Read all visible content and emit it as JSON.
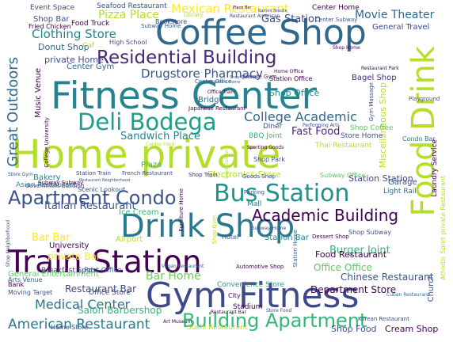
{
  "words": [
    {
      "text": "Home private",
      "color": "#b5de2b"
    },
    {
      "text": "Fitness Center",
      "color": "#26828e"
    },
    {
      "text": "Coffee Shop",
      "color": "#31688e"
    },
    {
      "text": "Gym Fitness",
      "color": "#3e4989"
    },
    {
      "text": "Drink Shop",
      "color": "#2a788e"
    },
    {
      "text": "Train Station",
      "color": "#440154"
    },
    {
      "text": "Food Drink",
      "color": "#b5de2b"
    },
    {
      "text": "Residential Building",
      "color": "#482878"
    },
    {
      "text": "Deli Bodega",
      "color": "#1f9e89"
    },
    {
      "text": "Apartment Condo",
      "color": "#3b528b"
    },
    {
      "text": "Bus Station",
      "color": "#21918c"
    },
    {
      "text": "Building Apartment",
      "color": "#35b779"
    },
    {
      "text": "Academic Building",
      "color": "#440154"
    },
    {
      "text": "American Restaurant",
      "color": "#2a788e"
    },
    {
      "text": "Great Outdoors",
      "color": "#31688e"
    },
    {
      "text": "Clothing Store",
      "color": "#25858e"
    },
    {
      "text": "Drugstore Pharmacy",
      "color": "#3b528b"
    },
    {
      "text": "College Academic",
      "color": "#31688e"
    },
    {
      "text": "Medical Center",
      "color": "#2c728e"
    },
    {
      "text": "Mexican Restaurant",
      "color": "#fde725"
    },
    {
      "text": "Pizza Place",
      "color": "#b5de2b"
    },
    {
      "text": "Movie Theater",
      "color": "#31688e"
    },
    {
      "text": "Gas Station",
      "color": "#3e4989"
    },
    {
      "text": "Office Office",
      "color": "#5ec962"
    },
    {
      "text": "Department Store",
      "color": "#440154"
    },
    {
      "text": "Bar Home",
      "color": "#6ece58"
    },
    {
      "text": "Italian Restaurant",
      "color": "#3b528b"
    },
    {
      "text": "Burger Joint",
      "color": "#35b779"
    },
    {
      "text": "Fast Food",
      "color": "#482878"
    },
    {
      "text": "Sandwich Place",
      "color": "#26828e"
    },
    {
      "text": "Bar Bar",
      "color": "#fde725"
    },
    {
      "text": "private Bar",
      "color": "#fde725"
    },
    {
      "text": "private Home",
      "color": "#3e4989"
    },
    {
      "text": "Restaurant Bar",
      "color": "#3e4989"
    },
    {
      "text": "Salon Barbershop",
      "color": "#35b779"
    },
    {
      "text": "Chinese Restaurant",
      "color": "#3b528b"
    },
    {
      "text": "Food Restaurant",
      "color": "#440154"
    },
    {
      "text": "Shop Office",
      "color": "#21918c"
    },
    {
      "text": "Station Station",
      "color": "#3e4989"
    },
    {
      "text": "Electronics Store",
      "color": "#b5de2b"
    },
    {
      "text": "Miscellaneous Shop",
      "color": "#b5de2b"
    },
    {
      "text": "Donut Shop",
      "color": "#31688e"
    },
    {
      "text": "Music Venue",
      "color": "#440154"
    },
    {
      "text": "Station Bar",
      "color": "#26828e"
    },
    {
      "text": "Shop Food",
      "color": "#3b528b"
    },
    {
      "text": "Cream Shop",
      "color": "#440154"
    },
    {
      "text": "Sushi Restaurant",
      "color": "#b5de2b"
    },
    {
      "text": "General Entertainment",
      "color": "#5ec962"
    },
    {
      "text": "Office Store",
      "color": "#3e4989"
    },
    {
      "text": "Bagel Shop",
      "color": "#482878"
    },
    {
      "text": "Convenience Store",
      "color": "#1f9e89"
    },
    {
      "text": "Center Home",
      "color": "#440154"
    },
    {
      "text": "Asian Restaurant",
      "color": "#1f9e89"
    },
    {
      "text": "Bakery",
      "color": "#26828e"
    },
    {
      "text": "Plaza",
      "color": "#35b779"
    },
    {
      "text": "Airport",
      "color": "#b5de2b"
    },
    {
      "text": "Stadium",
      "color": "#440154"
    },
    {
      "text": "Diner",
      "color": "#3e4989"
    },
    {
      "text": "Bridge",
      "color": "#31688e"
    },
    {
      "text": "Garage",
      "color": "#3b528b"
    },
    {
      "text": "Ice Cream",
      "color": "#35b779"
    },
    {
      "text": "University",
      "color": "#440154"
    },
    {
      "text": "Mall",
      "color": "#2a788e"
    },
    {
      "text": "Church",
      "color": "#3b528b"
    },
    {
      "text": "Center Gym",
      "color": "#31688e"
    },
    {
      "text": "Shop Bar",
      "color": "#3b528b"
    },
    {
      "text": "Food Truck",
      "color": "#440154"
    },
    {
      "text": "General Travel",
      "color": "#3e4989"
    },
    {
      "text": "Post Office",
      "color": "#31688e"
    },
    {
      "text": "Breakfast Spot",
      "color": "#3e4989"
    },
    {
      "text": "Seafood Restaurant",
      "color": "#3b528b"
    },
    {
      "text": "Event Space",
      "color": "#3e4989"
    },
    {
      "text": "Fried Chicken",
      "color": "#440154"
    },
    {
      "text": "Bookstore",
      "color": "#3e4989"
    },
    {
      "text": "Thai Restaurant",
      "color": "#b5de2b"
    },
    {
      "text": "Light Rail",
      "color": "#31688e"
    },
    {
      "text": "Condo Bar",
      "color": "#26828e"
    },
    {
      "text": "Laundry Service",
      "color": "#440154"
    },
    {
      "text": "Store Home",
      "color": "#3b528b"
    },
    {
      "text": "Shop Coffee",
      "color": "#5ec962"
    },
    {
      "text": "BBQ Joint",
      "color": "#35b779"
    },
    {
      "text": "Korean Restaurant",
      "color": "#3e4989"
    },
    {
      "text": "Home Store",
      "color": "#3b528b"
    },
    {
      "text": "Arts Venue",
      "color": "#31688e"
    },
    {
      "text": "Moving Target",
      "color": "#3b528b"
    },
    {
      "text": "Shop Subway",
      "color": "#3b528b"
    },
    {
      "text": "Dessert Shop",
      "color": "#440154"
    },
    {
      "text": "Shop Park",
      "color": "#3b528b"
    },
    {
      "text": "Shop Train",
      "color": "#482878"
    },
    {
      "text": "Scenic Lookout",
      "color": "#3b528b"
    },
    {
      "text": "Athletic Sport private Restaurant",
      "color": "#b5de2b"
    },
    {
      "text": "Cuban Restaurant",
      "color": "#31688e"
    },
    {
      "text": "Subway Subway",
      "color": "#440154"
    },
    {
      "text": "Station Train",
      "color": "#3b528b"
    },
    {
      "text": "French Restaurant",
      "color": "#3b528b"
    },
    {
      "text": "Government Building",
      "color": "#3e4989"
    },
    {
      "text": "College University",
      "color": "#440154"
    },
    {
      "text": "High School",
      "color": "#3b528b"
    },
    {
      "text": "Subway Home",
      "color": "#31688e"
    },
    {
      "text": "Library",
      "color": "#b5de2b"
    },
    {
      "text": "Station Office",
      "color": "#440154"
    },
    {
      "text": "Playground",
      "color": "#3b528b"
    },
    {
      "text": "Performing Arts",
      "color": "#3e4989"
    },
    {
      "text": "Sporting Goods",
      "color": "#440154"
    },
    {
      "text": "Gym Massage",
      "color": "#3b528b"
    },
    {
      "text": "Restaurant Park",
      "color": "#440154"
    },
    {
      "text": "Bank",
      "color": "#440154"
    },
    {
      "text": "Hotel",
      "color": "#3b528b"
    },
    {
      "text": "City",
      "color": "#440154"
    },
    {
      "text": "Caf",
      "color": "#b5de2b"
    },
    {
      "text": "Center Subway",
      "color": "#3b528b"
    },
    {
      "text": "Furniture Home",
      "color": "#440154"
    },
    {
      "text": "Subway Office",
      "color": "#5ec962"
    },
    {
      "text": "Vegan Restaurant",
      "color": "#31688e"
    },
    {
      "text": "Parking",
      "color": "#3b528b"
    },
    {
      "text": "Automotive Shop",
      "color": "#440154"
    },
    {
      "text": "Japanese Restaurant",
      "color": "#440154"
    },
    {
      "text": "Restaurant American",
      "color": "#3e4989"
    },
    {
      "text": "Center Food",
      "color": "#b5de2b"
    },
    {
      "text": "Goods Shop",
      "color": "#3b528b"
    },
    {
      "text": "Store Gym",
      "color": "#3b528b"
    },
    {
      "text": "Shop Neighborhood",
      "color": "#3b528b"
    },
    {
      "text": "Art Museum",
      "color": "#440154"
    },
    {
      "text": "Store Food",
      "color": "#3e4989"
    },
    {
      "text": "Restaurant Bar",
      "color": "#440154"
    },
    {
      "text": "Beer Garden",
      "color": "#b5de2b"
    },
    {
      "text": "Station Home",
      "color": "#31688e"
    },
    {
      "text": "Subway Home",
      "color": "#3e4989"
    },
    {
      "text": "Shop Gym",
      "color": "#b5de2b"
    },
    {
      "text": "private Gym",
      "color": "#482878"
    },
    {
      "text": "Shop Clothing",
      "color": "#3b528b"
    },
    {
      "text": "Outdoors Home",
      "color": "#3b528b"
    },
    {
      "text": "Office Train",
      "color": "#440154"
    },
    {
      "text": "Home Office",
      "color": "#440154"
    },
    {
      "text": "Restaurant Neighborhood",
      "color": "#3b528b"
    },
    {
      "text": "Center Office",
      "color": "#31688e"
    },
    {
      "text": "Shop Home",
      "color": "#440154"
    },
    {
      "text": "Place Bar",
      "color": "#440154"
    },
    {
      "text": "Ramen Noodle",
      "color": "#3b528b"
    }
  ]
}
